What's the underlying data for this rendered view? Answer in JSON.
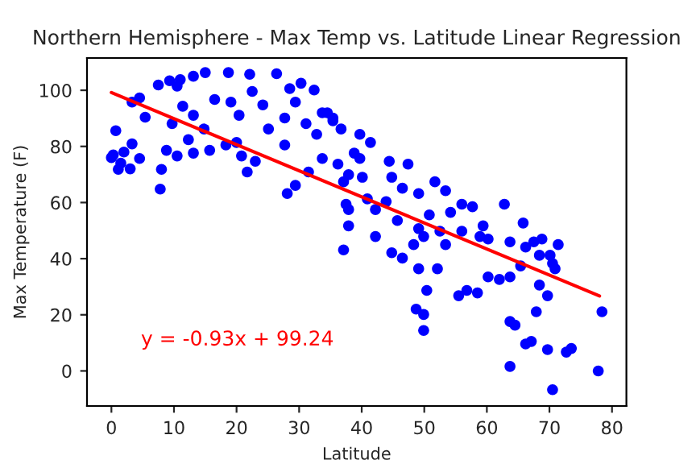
{
  "chart_data": {
    "type": "scatter",
    "title": "Northern Hemisphere - Max Temp vs. Latitude Linear Regression",
    "xlabel": "Latitude",
    "ylabel": "Max Temperature (F)",
    "xlim": [
      -3.9,
      82.3
    ],
    "ylim": [
      -12.5,
      111.5
    ],
    "xticks": [
      0,
      10,
      20,
      30,
      40,
      50,
      60,
      70,
      80
    ],
    "yticks": [
      0,
      20,
      40,
      60,
      80,
      100
    ],
    "grid": false,
    "legend": false,
    "annotations": [
      "y = -0.93x + 99.24"
    ],
    "series": [
      {
        "color": "#0000ff",
        "marker": "circle",
        "x": [
          0.3,
          0.7,
          1.1,
          3.3,
          4.5,
          5.4,
          3.3,
          4.5,
          7.8,
          8,
          7.5,
          9.3,
          10.5,
          11,
          13.1,
          15,
          11.4,
          9.7,
          13.1,
          14.8,
          12.3,
          8.8,
          10.5,
          13.1,
          15.7,
          16.5,
          18.7,
          19.1,
          20.4,
          20,
          18.3,
          20.8,
          22.1,
          22.5,
          21.7,
          23,
          24.2,
          25.1,
          26.4,
          27.7,
          27.7,
          28.5,
          29.4,
          28.1,
          29.4,
          30.3,
          31.1,
          31.5,
          32.4,
          32.8,
          33.7,
          33.7,
          35.4,
          36.7,
          36.2,
          37.1,
          37.5,
          37.9,
          37.1,
          34.5,
          35.4,
          39.7,
          41.4,
          38.8,
          39.7,
          37.9,
          40.1,
          44.4,
          47.4,
          44.8,
          46.5,
          51.7,
          53.4,
          56,
          57.7,
          62.8,
          65.8,
          49.1,
          43.9,
          40.9,
          37.9,
          42.2,
          50.8,
          54.2,
          45.7,
          49.1,
          52.5,
          56,
          59.4,
          60.2,
          63.7,
          67.5,
          68.4,
          70.1,
          44.8,
          42.2,
          48.3,
          46.5,
          49.1,
          50.4,
          49.9,
          53.4,
          52.1,
          55.5,
          56.8,
          58.5,
          48.7,
          49.9,
          49.9,
          60.2,
          62,
          63.7,
          65.4,
          63.7,
          64.5,
          66.2,
          67.1,
          67.9,
          69.7,
          68.4,
          70.5,
          70.9,
          69.7,
          72.7,
          73.5,
          63.7,
          70.5,
          77.8,
          78.4,
          71.4,
          68.8,
          58.9,
          66.2,
          0,
          1.5,
          2,
          3
        ],
        "values": [
          77,
          85.6,
          71.8,
          80.9,
          75.7,
          90.4,
          95.8,
          97.3,
          64.8,
          71.8,
          101.9,
          103.4,
          101.5,
          103.8,
          105,
          106.3,
          94.3,
          88.1,
          91.1,
          86.2,
          82.4,
          78.6,
          76.6,
          77.6,
          78.6,
          96.7,
          106.3,
          95.8,
          91.1,
          81.4,
          80.5,
          76.6,
          105.7,
          99.6,
          70.9,
          74.7,
          94.8,
          86.2,
          105.9,
          90.1,
          80.5,
          100.6,
          95.8,
          63.2,
          66.1,
          102.5,
          88.1,
          70.9,
          100.1,
          84.3,
          92,
          75.7,
          89.1,
          86.2,
          73.7,
          67.4,
          59.4,
          51.7,
          43.1,
          92,
          90.1,
          84.3,
          81.4,
          77.6,
          75.7,
          69.9,
          69,
          74.7,
          73.7,
          69,
          65.1,
          67.4,
          64.2,
          59.4,
          58.5,
          59.4,
          52.7,
          63.2,
          60.3,
          61.3,
          57.5,
          57.5,
          55.6,
          56.5,
          53.6,
          50.7,
          49.8,
          49.8,
          51.7,
          47,
          46,
          46,
          41.2,
          41.2,
          42.1,
          47.9,
          45,
          40.2,
          36.4,
          28.7,
          47.9,
          45,
          36.4,
          26.8,
          28.7,
          27.8,
          22,
          20.1,
          14.4,
          33.5,
          32.6,
          33.5,
          37.4,
          17.6,
          16.3,
          9.6,
          10.5,
          21.1,
          26.8,
          30.6,
          38.3,
          36.4,
          7.6,
          6.7,
          8,
          1.6,
          -6.7,
          0,
          21.1,
          45,
          47,
          47.9,
          44.1,
          76,
          74,
          78,
          72
        ]
      },
      {
        "type": "line",
        "color": "#ff0000",
        "line_style": "solid",
        "marker": "none",
        "x": [
          0,
          78
        ],
        "values": [
          99.2,
          26.7
        ]
      }
    ]
  }
}
